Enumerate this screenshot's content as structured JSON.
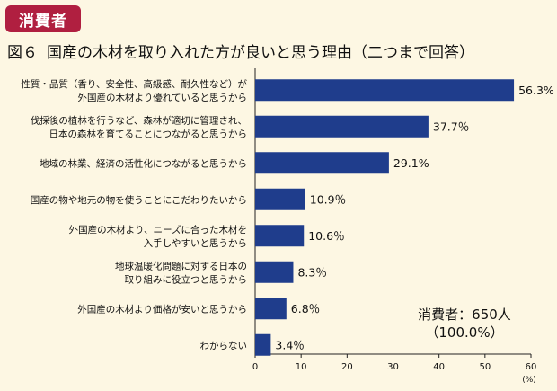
{
  "header": {
    "badge": "消費者",
    "figure_number": "図６",
    "title": "国産の木材を取り入れた方が良いと思う理由（二つまで回答）"
  },
  "note": {
    "line1": "消費者：650人",
    "line2": "（100.0%）"
  },
  "colors": {
    "bar": "#1f3d8c",
    "badge": "#b01f40",
    "background": "#fdf7e3"
  },
  "chart_data": {
    "type": "bar",
    "orientation": "horizontal",
    "categories": [
      [
        "性質・品質（香り、安全性、高級感、耐久性など）が",
        "外国産の木材より優れていると思うから"
      ],
      [
        "伐採後の植林を行うなど、森林が適切に管理され、",
        "日本の森林を育てることにつながると思うから"
      ],
      [
        "地域の林業、経済の活性化につながると思うから"
      ],
      [
        "国産の物や地元の物を使うことにこだわりたいから"
      ],
      [
        "外国産の木材より、ニーズに合った木材を",
        "入手しやすいと思うから"
      ],
      [
        "地球温暖化問題に対する日本の",
        "取り組みに役立つと思うから"
      ],
      [
        "外国産の木材より価格が安いと思うから"
      ],
      [
        "わからない"
      ]
    ],
    "values": [
      56.3,
      37.7,
      29.1,
      10.9,
      10.6,
      8.3,
      6.8,
      3.4
    ],
    "value_labels": [
      "56.3%",
      "37.7％",
      "29.1%",
      "10.9％",
      "10.6％",
      "8.3％",
      "6.8％",
      "3.4％"
    ],
    "xlim": [
      0,
      60
    ],
    "xticks": [
      0,
      10,
      20,
      30,
      40,
      50,
      60
    ],
    "x_unit": "(%)",
    "grid": false
  }
}
